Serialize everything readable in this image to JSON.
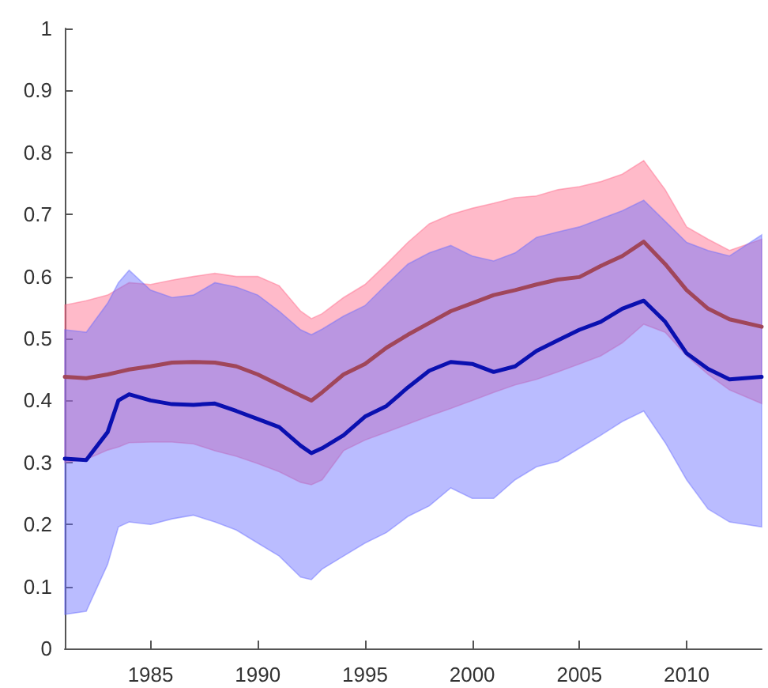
{
  "chart_data": {
    "type": "line",
    "x": [
      1981,
      1982,
      1983,
      1983.5,
      1984,
      1985,
      1986,
      1987,
      1988,
      1989,
      1990,
      1991,
      1992,
      1992.5,
      1993,
      1994,
      1995,
      1996,
      1997,
      1998,
      1999,
      2000,
      2001,
      2002,
      2003,
      2004,
      2005,
      2006,
      2007,
      2008,
      2009,
      2010,
      2011,
      2012,
      2013.5
    ],
    "series": [
      {
        "color": "#a0465a",
        "values": [
          0.438,
          0.436,
          0.442,
          0.446,
          0.45,
          0.455,
          0.461,
          0.462,
          0.461,
          0.455,
          0.442,
          0.425,
          0.408,
          0.4,
          0.413,
          0.442,
          0.459,
          0.485,
          0.506,
          0.525,
          0.544,
          0.557,
          0.57,
          0.578,
          0.587,
          0.595,
          0.599,
          0.617,
          0.633,
          0.656,
          0.62,
          0.578,
          0.548,
          0.531,
          0.519
        ],
        "upper": [
          0.554,
          0.561,
          0.57,
          0.58,
          0.59,
          0.587,
          0.594,
          0.6,
          0.605,
          0.6,
          0.6,
          0.585,
          0.544,
          0.532,
          0.54,
          0.566,
          0.587,
          0.62,
          0.655,
          0.685,
          0.7,
          0.71,
          0.718,
          0.727,
          0.73,
          0.74,
          0.745,
          0.753,
          0.765,
          0.787,
          0.74,
          0.68,
          0.66,
          0.642,
          0.66
        ],
        "lower": [
          0.3,
          0.305,
          0.32,
          0.325,
          0.332,
          0.333,
          0.333,
          0.33,
          0.319,
          0.31,
          0.298,
          0.285,
          0.268,
          0.264,
          0.272,
          0.319,
          0.336,
          0.349,
          0.362,
          0.375,
          0.387,
          0.4,
          0.413,
          0.425,
          0.434,
          0.446,
          0.459,
          0.472,
          0.493,
          0.523,
          0.51,
          0.472,
          0.442,
          0.417,
          0.395
        ]
      },
      {
        "color": "#0a10b0",
        "values": [
          0.306,
          0.304,
          0.349,
          0.4,
          0.41,
          0.4,
          0.394,
          0.393,
          0.395,
          0.383,
          0.37,
          0.357,
          0.327,
          0.315,
          0.323,
          0.344,
          0.374,
          0.391,
          0.421,
          0.448,
          0.462,
          0.459,
          0.446,
          0.455,
          0.48,
          0.497,
          0.514,
          0.527,
          0.548,
          0.561,
          0.527,
          0.476,
          0.451,
          0.434,
          0.438
        ],
        "upper": [
          0.514,
          0.51,
          0.557,
          0.59,
          0.61,
          0.578,
          0.566,
          0.57,
          0.59,
          0.583,
          0.57,
          0.544,
          0.514,
          0.506,
          0.515,
          0.536,
          0.553,
          0.587,
          0.62,
          0.638,
          0.65,
          0.633,
          0.625,
          0.638,
          0.663,
          0.672,
          0.68,
          0.693,
          0.706,
          0.723,
          0.689,
          0.655,
          0.642,
          0.633,
          0.667
        ],
        "lower": [
          0.055,
          0.06,
          0.136,
          0.196,
          0.204,
          0.2,
          0.209,
          0.215,
          0.204,
          0.191,
          0.17,
          0.149,
          0.115,
          0.111,
          0.128,
          0.149,
          0.17,
          0.187,
          0.213,
          0.23,
          0.259,
          0.242,
          0.242,
          0.272,
          0.293,
          0.302,
          0.323,
          0.344,
          0.366,
          0.383,
          0.332,
          0.272,
          0.225,
          0.204,
          0.196
        ]
      }
    ],
    "xlim": [
      1981,
      2013.5
    ],
    "xticks": [
      1985,
      1990,
      1995,
      2000,
      2005,
      2010
    ],
    "ylim": [
      0,
      1
    ],
    "yticks": [
      0,
      0.1,
      0.2,
      0.3,
      0.4,
      0.5,
      0.6,
      0.7,
      0.8,
      0.9,
      1
    ],
    "grid": false,
    "marker": "none",
    "line_style": "solid"
  }
}
